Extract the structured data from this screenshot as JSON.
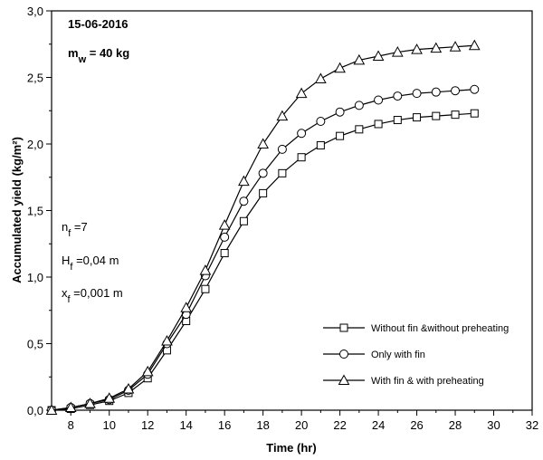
{
  "chart_data": {
    "type": "line",
    "xlabel": "Time (hr)",
    "ylabel": "Accumulated yield (kg/m²)",
    "xlim": [
      7,
      32
    ],
    "ylim": [
      0,
      3
    ],
    "xticks": [
      8,
      10,
      12,
      14,
      16,
      18,
      20,
      22,
      24,
      26,
      28,
      30,
      32
    ],
    "yticks": [
      "0,0",
      "0,5",
      "1,0",
      "1,5",
      "2,0",
      "2,5",
      "3,0"
    ],
    "grid": false,
    "legend_position": "bottom-right",
    "annotations": {
      "date": "15-06-2016",
      "mass_main": "m",
      "mass_sub": "w",
      "mass_rest": " = 40 kg",
      "nf_main": "n",
      "nf_sub": "f",
      "nf_rest": " =7",
      "hf_main": "H",
      "hf_sub": "f",
      "hf_rest": " =0,04 m",
      "xf_main": "x",
      "xf_sub": "f",
      "xf_rest": " =0,001 m"
    },
    "x": [
      7,
      8,
      9,
      10,
      11,
      12,
      13,
      14,
      15,
      16,
      17,
      18,
      19,
      20,
      21,
      22,
      23,
      24,
      25,
      26,
      27,
      28,
      29
    ],
    "series": [
      {
        "name": "Without fin &without preheating",
        "marker": "square",
        "values": [
          0.0,
          0.01,
          0.04,
          0.07,
          0.13,
          0.24,
          0.45,
          0.67,
          0.91,
          1.18,
          1.42,
          1.63,
          1.78,
          1.9,
          1.99,
          2.06,
          2.11,
          2.15,
          2.18,
          2.2,
          2.21,
          2.22,
          2.23
        ]
      },
      {
        "name": "Only with fin",
        "marker": "circle",
        "values": [
          0.0,
          0.02,
          0.05,
          0.08,
          0.15,
          0.27,
          0.5,
          0.72,
          1.01,
          1.3,
          1.57,
          1.78,
          1.96,
          2.08,
          2.17,
          2.24,
          2.29,
          2.33,
          2.36,
          2.38,
          2.39,
          2.4,
          2.41
        ]
      },
      {
        "name": "With fin & with preheating",
        "marker": "triangle",
        "values": [
          0.0,
          0.02,
          0.05,
          0.09,
          0.16,
          0.29,
          0.52,
          0.77,
          1.05,
          1.39,
          1.72,
          2.0,
          2.21,
          2.38,
          2.49,
          2.57,
          2.63,
          2.66,
          2.69,
          2.71,
          2.72,
          2.73,
          2.74
        ]
      }
    ]
  }
}
